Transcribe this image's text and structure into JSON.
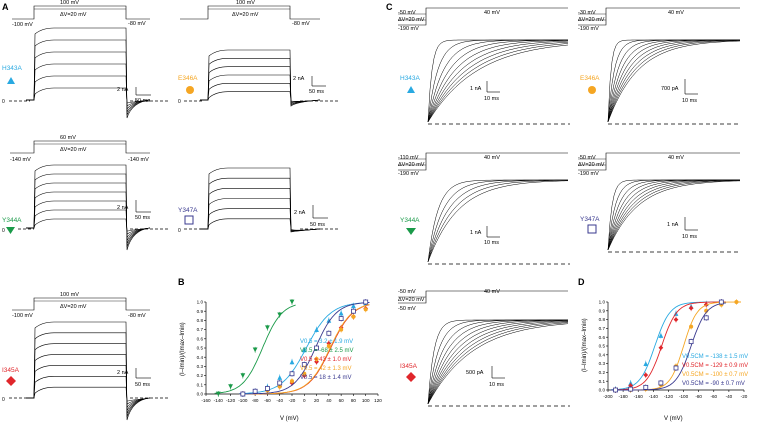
{
  "panels": {
    "A": {
      "letter": "A",
      "h343a": {
        "mutant": "H343A",
        "color": "#29a9e1",
        "marker": "triangle-up",
        "v_step": "100 mV",
        "v_delta": "ΔV=20 mV",
        "v_hold": "-100 mV",
        "v_tail": "-80 mV",
        "scale_y": "2 nA",
        "scale_x": "50 ms",
        "zero": "0"
      },
      "e346a": {
        "mutant": "E346A",
        "color": "#f5a623",
        "marker": "circle",
        "v_step": "100 mV",
        "v_delta": "ΔV=20 mV",
        "v_tail": "-80 mV",
        "scale_y": "2 nA",
        "scale_x": "50 ms",
        "zero": "0"
      },
      "y344a": {
        "mutant": "Y344A",
        "color": "#1a9a49",
        "marker": "triangle-down",
        "v_step": "60 mV",
        "v_delta": "ΔV=20 mV",
        "v_hold": "-140 mV",
        "v_tail": "-140 mV",
        "scale_y": "2 nA",
        "scale_x": "50 ms",
        "zero": "0"
      },
      "y347a": {
        "mutant": "Y347A",
        "color": "#3a3a8f",
        "marker": "square-open",
        "scale_y": "2 nA",
        "scale_x": "50 ms",
        "zero": "0"
      },
      "i345a": {
        "mutant": "I345A",
        "color": "#e0262b",
        "marker": "diamond",
        "v_step": "100 mV",
        "v_delta": "ΔV=20 mV",
        "v_hold": "-100 mV",
        "v_tail": "-80 mV",
        "scale_y": "2 nA",
        "scale_x": "50 ms",
        "zero": "0"
      }
    },
    "B": {
      "letter": "B",
      "ylabel": "(I–Imin)/(Imax–Imin)",
      "xlabel": "V (mV)",
      "legend": [
        {
          "label": "V0.5 = 3.2 ± 1.9 mV",
          "color": "#29a9e1"
        },
        {
          "label": "V0.5 = -68 ± 2.5 mV",
          "color": "#1a9a49"
        },
        {
          "label": "V0.5 = 43 ± 1.0 mV",
          "color": "#e0262b"
        },
        {
          "label": "V0.5 = 42 ± 1.3 mV",
          "color": "#f5a623"
        },
        {
          "label": "V0.5 = 18 ± 1.4 mV",
          "color": "#3a3a8f"
        }
      ]
    },
    "C": {
      "letter": "C",
      "h343a": {
        "mutant": "H343A",
        "color": "#29a9e1",
        "v_pre": "-50 mV",
        "v_delta": "ΔV=20 mV",
        "v_hold": "-190 mV",
        "v_step": "40 mV",
        "scale_y": "1 nA",
        "scale_x": "10 ms"
      },
      "e346a": {
        "mutant": "E346A",
        "color": "#f5a623",
        "v_pre": "-30 mV",
        "v_delta": "ΔV=20 mV",
        "v_hold": "-190 mV",
        "v_step": "40 mV",
        "scale_y": "700 pA",
        "scale_x": "10 ms"
      },
      "y344a": {
        "mutant": "Y344A",
        "color": "#1a9a49",
        "v_pre": "-110 mV",
        "v_delta": "ΔV=20 mV",
        "v_hold": "-190 mV",
        "v_step": "40 mV",
        "scale_y": "1 nA",
        "scale_x": "10 ms"
      },
      "y347a": {
        "mutant": "Y347A",
        "color": "#3a3a8f",
        "v_pre": "-50 mV",
        "v_delta": "ΔV=20 mV",
        "v_hold": "-190 mV",
        "v_step": "40 mV",
        "scale_y": "1 nA",
        "scale_x": "10 ms"
      },
      "i345a": {
        "mutant": "I345A",
        "color": "#e0262b",
        "v_pre": "-50 mV",
        "v_delta": "ΔV=20 mV",
        "v_hold": "-50 mV",
        "v_step": "40 mV",
        "scale_y": "500 pA",
        "scale_x": "10 ms"
      }
    },
    "D": {
      "letter": "D",
      "ylabel": "(I–Imin)/(Imax–Imin)",
      "xlabel": "V (mV)",
      "legend": [
        {
          "label": "V0.5CM = -138 ± 1.5 mV",
          "color": "#29a9e1"
        },
        {
          "label": "V0.5CM = -129 ± 0.9 mV",
          "color": "#e0262b"
        },
        {
          "label": "V0.5CM = -100 ± 0.7 mV",
          "color": "#f5a623"
        },
        {
          "label": "V0.5CM = -90 ± 0.7 mV",
          "color": "#3a3a8f"
        }
      ]
    }
  },
  "chart_data": [
    {
      "type": "scatter",
      "panel": "B",
      "xlabel": "V (mV)",
      "ylabel": "(I–Imin)/(Imax–Imin)",
      "xlim": [
        -160,
        120
      ],
      "ylim": [
        0,
        1.0
      ],
      "xticks": [
        -160,
        -140,
        -120,
        -100,
        -80,
        -60,
        -40,
        -20,
        0,
        20,
        40,
        60,
        80,
        100,
        120
      ],
      "yticks": [
        0,
        0.1,
        0.2,
        0.3,
        0.4,
        0.5,
        0.6,
        0.7,
        0.8,
        0.9,
        1.0
      ],
      "series": [
        {
          "color": "#29a9e1",
          "marker": "triangle-up",
          "v_half": 3.2,
          "slope": 20,
          "x": [
            -100,
            -80,
            -60,
            -40,
            -20,
            0,
            20,
            40,
            60,
            80,
            100
          ],
          "y": [
            0.0,
            0.03,
            0.08,
            0.18,
            0.35,
            0.48,
            0.7,
            0.8,
            0.88,
            0.96,
            0.99
          ]
        },
        {
          "color": "#1a9a49",
          "marker": "triangle-down",
          "v_half": -68,
          "slope": 16,
          "x": [
            -140,
            -120,
            -100,
            -80,
            -60,
            -40,
            -20
          ],
          "y": [
            0.0,
            0.08,
            0.2,
            0.48,
            0.72,
            0.86,
            1.0
          ]
        },
        {
          "color": "#e0262b",
          "marker": "diamond",
          "v_half": 43,
          "slope": 18,
          "x": [
            -100,
            -80,
            -60,
            -40,
            -20,
            0,
            20,
            40,
            60,
            80,
            100
          ],
          "y": [
            0.0,
            0.02,
            0.04,
            0.08,
            0.12,
            0.2,
            0.35,
            0.55,
            0.72,
            0.84,
            0.93
          ]
        },
        {
          "color": "#f5a623",
          "marker": "circle",
          "v_half": 42,
          "slope": 18,
          "x": [
            -100,
            -80,
            -60,
            -40,
            -20,
            0,
            20,
            40,
            60,
            80,
            100
          ],
          "y": [
            0.0,
            0.02,
            0.04,
            0.08,
            0.14,
            0.22,
            0.38,
            0.52,
            0.7,
            0.84,
            0.92
          ]
        },
        {
          "color": "#3a3a8f",
          "marker": "square-open",
          "v_half": 18,
          "slope": 17,
          "x": [
            -100,
            -80,
            -60,
            -40,
            -20,
            0,
            20,
            40,
            60,
            80,
            100
          ],
          "y": [
            0.0,
            0.03,
            0.06,
            0.12,
            0.22,
            0.32,
            0.5,
            0.66,
            0.82,
            0.9,
            1.0
          ]
        }
      ]
    },
    {
      "type": "scatter",
      "panel": "D",
      "xlabel": "V (mV)",
      "ylabel": "(I–Imin)/(Imax–Imin)",
      "xlim": [
        -200,
        -20
      ],
      "ylim": [
        0,
        1.0
      ],
      "xticks": [
        -200,
        -180,
        -160,
        -140,
        -120,
        -100,
        -80,
        -60,
        -40,
        -20
      ],
      "yticks": [
        0,
        0.1,
        0.2,
        0.3,
        0.4,
        0.5,
        0.6,
        0.7,
        0.8,
        0.9,
        1.0
      ],
      "series": [
        {
          "color": "#29a9e1",
          "marker": "triangle-up",
          "v_half": -138,
          "slope": 10,
          "x": [
            -190,
            -170,
            -150,
            -130,
            -110,
            -90,
            -70,
            -50
          ],
          "y": [
            0.01,
            0.08,
            0.3,
            0.62,
            0.87,
            0.95,
            0.98,
            1.0
          ]
        },
        {
          "color": "#e0262b",
          "marker": "diamond",
          "v_half": -129,
          "slope": 10,
          "x": [
            -190,
            -170,
            -150,
            -130,
            -110,
            -90,
            -70,
            -50
          ],
          "y": [
            0.0,
            0.05,
            0.17,
            0.48,
            0.8,
            0.93,
            0.97,
            1.0
          ]
        },
        {
          "color": "#f5a623",
          "marker": "circle",
          "v_half": -100,
          "slope": 9,
          "x": [
            -190,
            -170,
            -150,
            -130,
            -110,
            -90,
            -70,
            -50,
            -30
          ],
          "y": [
            0.0,
            0.0,
            0.01,
            0.06,
            0.27,
            0.72,
            0.9,
            0.97,
            1.0
          ]
        },
        {
          "color": "#3a3a8f",
          "marker": "square-open",
          "v_half": -90,
          "slope": 10,
          "x": [
            -190,
            -170,
            -150,
            -130,
            -110,
            -90,
            -70,
            -50
          ],
          "y": [
            0.0,
            0.01,
            0.03,
            0.08,
            0.25,
            0.55,
            0.82,
            1.0
          ]
        }
      ]
    }
  ]
}
